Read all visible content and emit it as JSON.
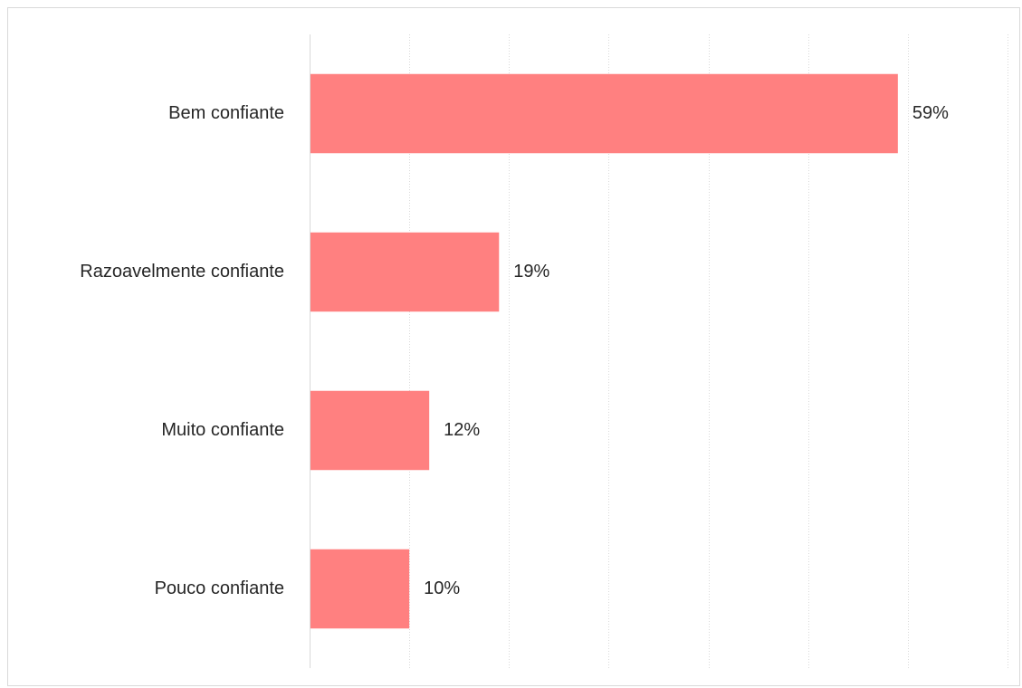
{
  "chart_data": {
    "type": "bar",
    "orientation": "horizontal",
    "categories": [
      "Bem confiante",
      "Razoavelmente confiante",
      "Muito confiante",
      "Pouco confiante"
    ],
    "values": [
      59,
      19,
      12,
      10
    ],
    "value_labels": [
      "59%",
      "19%",
      "12%",
      "10%"
    ],
    "xlim": [
      0,
      70
    ],
    "grid": "vertical dotted",
    "colors": {
      "bar": "#ff8080",
      "grid": "#d9d9d9",
      "axis": "#d9d9d9",
      "text": "#262626"
    }
  }
}
